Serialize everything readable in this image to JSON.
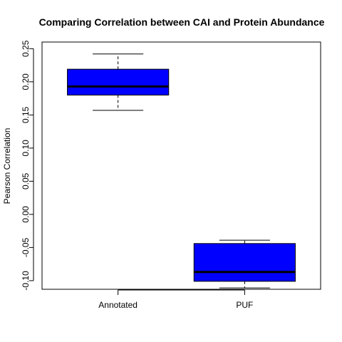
{
  "chart_data": {
    "type": "boxplot",
    "title": "Comparing Correlation between CAI and Protein Abundance",
    "xlabel": "",
    "ylabel": "Pearson Correlation",
    "ylim": [
      -0.113,
      0.26
    ],
    "yticks": [
      "-0.10",
      "-0.05",
      "0.00",
      "0.05",
      "0.10",
      "0.15",
      "0.20",
      "0.25"
    ],
    "categories": [
      "Annotated",
      "PUF"
    ],
    "boxes": [
      {
        "category": "Annotated",
        "whisker_low": 0.157,
        "q1": 0.18,
        "median": 0.193,
        "q3": 0.219,
        "whisker_high": 0.242
      },
      {
        "category": "PUF",
        "whisker_low": -0.111,
        "q1": -0.101,
        "median": -0.087,
        "q3": -0.044,
        "whisker_high": -0.039
      }
    ],
    "box_color": "#0000ff",
    "grid": false,
    "legend": "none"
  }
}
